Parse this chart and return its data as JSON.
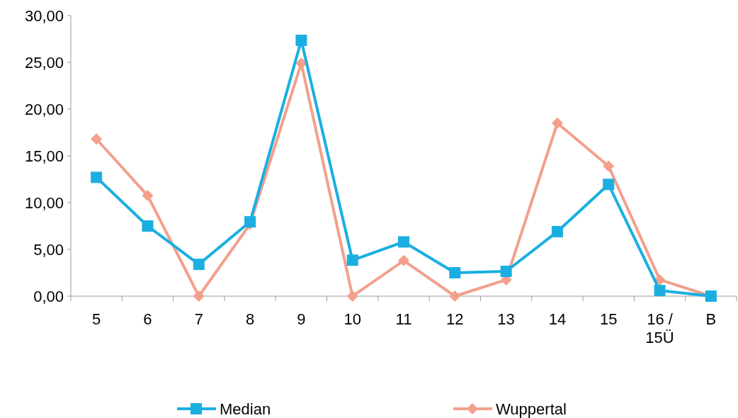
{
  "chart_data": {
    "type": "line",
    "categories": [
      "5",
      "6",
      "7",
      "8",
      "9",
      "10",
      "11",
      "12",
      "13",
      "14",
      "15",
      "16 / 15Ü",
      "B"
    ],
    "ylim": [
      0,
      30
    ],
    "yticks": [
      {
        "value": 0,
        "label": "0,00"
      },
      {
        "value": 5,
        "label": "5,00"
      },
      {
        "value": 10,
        "label": "10,00"
      },
      {
        "value": 15,
        "label": "15,00"
      },
      {
        "value": 20,
        "label": "20,00"
      },
      {
        "value": 25,
        "label": "25,00"
      },
      {
        "value": 30,
        "label": "30,00"
      }
    ],
    "grid": false,
    "legend": "bottom",
    "series": [
      {
        "name": "Median",
        "color": "#1aafe0",
        "marker": "square",
        "values": [
          12.7,
          7.5,
          3.4,
          7.95,
          27.35,
          3.85,
          5.8,
          2.5,
          2.65,
          6.9,
          11.95,
          0.6,
          0
        ]
      },
      {
        "name": "Wuppertal",
        "color": "#f2a08c",
        "marker": "diamond",
        "values": [
          16.8,
          10.75,
          0,
          7.7,
          24.9,
          0,
          3.8,
          0,
          1.75,
          18.5,
          13.9,
          1.75,
          0
        ]
      }
    ]
  }
}
